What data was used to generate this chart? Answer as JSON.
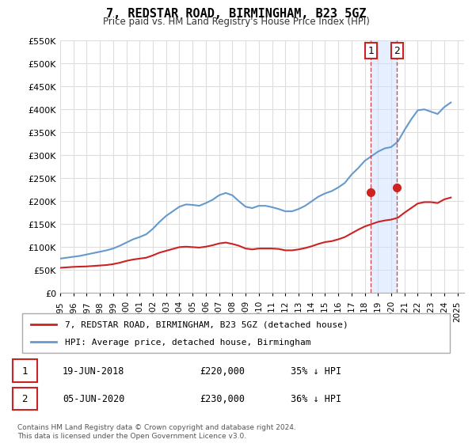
{
  "title": "7, REDSTAR ROAD, BIRMINGHAM, B23 5GZ",
  "subtitle": "Price paid vs. HM Land Registry's House Price Index (HPI)",
  "ylabel": "",
  "ylim": [
    0,
    550000
  ],
  "yticks": [
    0,
    50000,
    100000,
    150000,
    200000,
    250000,
    300000,
    350000,
    400000,
    450000,
    500000,
    550000
  ],
  "ytick_labels": [
    "£0",
    "£50K",
    "£100K",
    "£150K",
    "£200K",
    "£250K",
    "£300K",
    "£350K",
    "£400K",
    "£450K",
    "£500K",
    "£550K"
  ],
  "hpi_years": [
    1995,
    1995.5,
    1996,
    1996.5,
    1997,
    1997.5,
    1998,
    1998.5,
    1999,
    1999.5,
    2000,
    2000.5,
    2001,
    2001.5,
    2002,
    2002.5,
    2003,
    2003.5,
    2004,
    2004.5,
    2005,
    2005.5,
    2006,
    2006.5,
    2007,
    2007.5,
    2008,
    2008.5,
    2009,
    2009.5,
    2010,
    2010.5,
    2011,
    2011.5,
    2012,
    2012.5,
    2013,
    2013.5,
    2014,
    2014.5,
    2015,
    2015.5,
    2016,
    2016.5,
    2017,
    2017.5,
    2018,
    2018.5,
    2019,
    2019.5,
    2020,
    2020.5,
    2021,
    2021.5,
    2022,
    2022.5,
    2023,
    2023.5,
    2024,
    2024.5
  ],
  "hpi_values": [
    75000,
    77000,
    79000,
    81000,
    84000,
    87000,
    90000,
    93000,
    97000,
    103000,
    110000,
    117000,
    122000,
    128000,
    140000,
    155000,
    168000,
    178000,
    188000,
    193000,
    192000,
    190000,
    196000,
    203000,
    213000,
    218000,
    213000,
    200000,
    188000,
    185000,
    190000,
    190000,
    187000,
    183000,
    178000,
    178000,
    183000,
    190000,
    200000,
    210000,
    217000,
    222000,
    230000,
    240000,
    258000,
    272000,
    288000,
    298000,
    308000,
    315000,
    318000,
    330000,
    355000,
    378000,
    398000,
    400000,
    395000,
    390000,
    405000,
    415000
  ],
  "paid_years": [
    1995,
    1995.5,
    1996,
    1996.5,
    1997,
    1997.5,
    1998,
    1998.5,
    1999,
    1999.5,
    2000,
    2000.5,
    2001,
    2001.5,
    2002,
    2002.5,
    2003,
    2003.5,
    2004,
    2004.5,
    2005,
    2005.5,
    2006,
    2006.5,
    2007,
    2007.5,
    2008,
    2008.5,
    2009,
    2009.5,
    2010,
    2010.5,
    2011,
    2011.5,
    2012,
    2012.5,
    2013,
    2013.5,
    2014,
    2014.5,
    2015,
    2015.5,
    2016,
    2016.5,
    2017,
    2017.5,
    2018,
    2018.5,
    2019,
    2019.5,
    2020,
    2020.5,
    2021,
    2021.5,
    2022,
    2022.5,
    2023,
    2023.5,
    2024,
    2024.5
  ],
  "paid_values": [
    55000,
    56000,
    57000,
    57500,
    58000,
    59000,
    60000,
    61000,
    63000,
    66000,
    70000,
    73000,
    75000,
    77000,
    82000,
    88000,
    92000,
    96000,
    100000,
    101000,
    100000,
    99000,
    101000,
    104000,
    108000,
    110000,
    107000,
    103000,
    97000,
    95000,
    97000,
    97000,
    97000,
    96000,
    93000,
    93000,
    95000,
    98000,
    102000,
    107000,
    111000,
    113000,
    117000,
    122000,
    130000,
    138000,
    145000,
    150000,
    155000,
    158000,
    160000,
    164000,
    175000,
    185000,
    195000,
    198000,
    198000,
    196000,
    204000,
    208000
  ],
  "transaction1_x": 2018.47,
  "transaction1_y": 220000,
  "transaction2_x": 2020.43,
  "transaction2_y": 230000,
  "hpi_color": "#6699cc",
  "paid_color": "#cc2222",
  "marker_color": "#cc2222",
  "vline_color": "#cc2222",
  "shade_color": "#cce0ff",
  "background_color": "#ffffff",
  "grid_color": "#dddddd",
  "legend_label_paid": "7, REDSTAR ROAD, BIRMINGHAM, B23 5GZ (detached house)",
  "legend_label_hpi": "HPI: Average price, detached house, Birmingham",
  "transaction_rows": [
    {
      "num": "1",
      "date": "19-JUN-2018",
      "price": "£220,000",
      "desc": "35% ↓ HPI"
    },
    {
      "num": "2",
      "date": "05-JUN-2020",
      "price": "£230,000",
      "desc": "36% ↓ HPI"
    }
  ],
  "copyright_text": "Contains HM Land Registry data © Crown copyright and database right 2024.\nThis data is licensed under the Open Government Licence v3.0.",
  "xlim": [
    1995,
    2025.5
  ],
  "xtick_years": [
    1995,
    1996,
    1997,
    1998,
    1999,
    2000,
    2001,
    2002,
    2003,
    2004,
    2005,
    2006,
    2007,
    2008,
    2009,
    2010,
    2011,
    2012,
    2013,
    2014,
    2015,
    2016,
    2017,
    2018,
    2019,
    2020,
    2021,
    2022,
    2023,
    2024,
    2025
  ]
}
